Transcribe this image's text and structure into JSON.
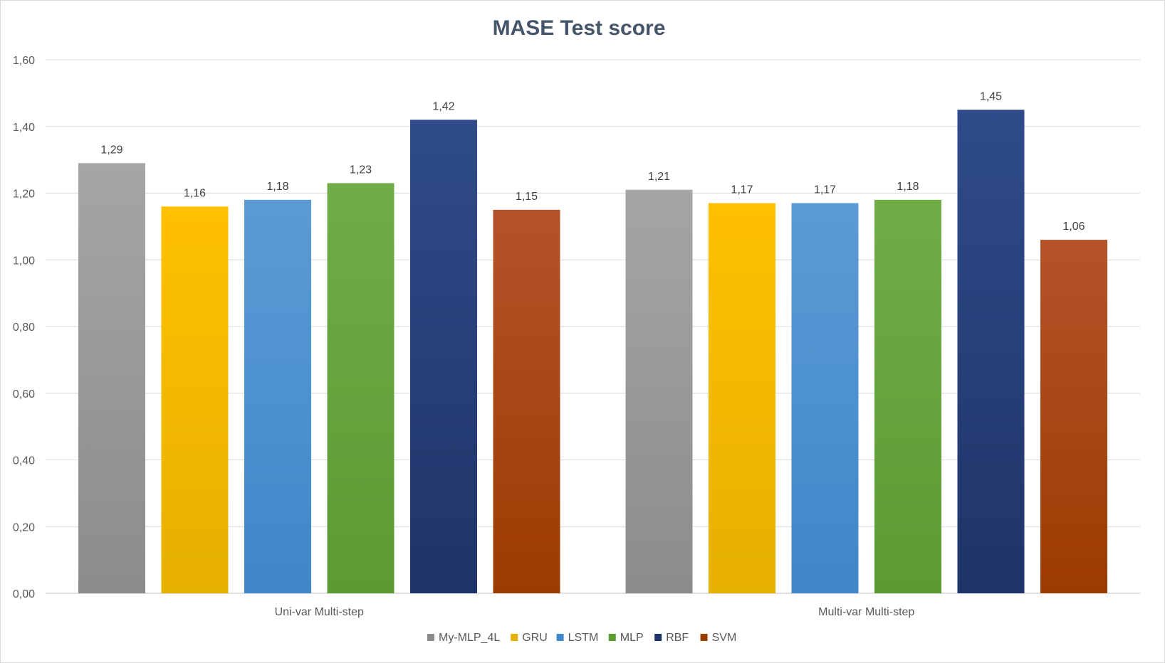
{
  "chart_data": {
    "type": "bar",
    "title": "MASE Test score",
    "categories": [
      "Uni-var Multi-step",
      "Multi-var Multi-step"
    ],
    "series": [
      {
        "name": "My-MLP_4L",
        "values": [
          1.29,
          1.21
        ],
        "labels": [
          "1,29",
          "1,21"
        ],
        "color": "#a5a5a5",
        "color_dark": "#8c8c8c"
      },
      {
        "name": "GRU",
        "values": [
          1.16,
          1.17
        ],
        "labels": [
          "1,16",
          "1,17"
        ],
        "color": "#ffc000",
        "color_dark": "#e6b000"
      },
      {
        "name": "LSTM",
        "values": [
          1.18,
          1.17
        ],
        "labels": [
          "1,18",
          "1,17"
        ],
        "color": "#5b9bd5",
        "color_dark": "#3f87c9"
      },
      {
        "name": "MLP",
        "values": [
          1.23,
          1.18
        ],
        "labels": [
          "1,23",
          "1,18"
        ],
        "color": "#70ad47",
        "color_dark": "#5c9a32"
      },
      {
        "name": "RBF",
        "values": [
          1.42,
          1.45
        ],
        "labels": [
          "1,42",
          "1,45"
        ],
        "color": "#2f4b8a",
        "color_dark": "#1f3468"
      },
      {
        "name": "SVM",
        "values": [
          1.15,
          1.06
        ],
        "labels": [
          "1,15",
          "1,06"
        ],
        "color": "#b5522b",
        "color_dark": "#9c3b00"
      }
    ],
    "ylim": [
      0,
      1.6
    ],
    "yticks": [
      0,
      0.2,
      0.4,
      0.6,
      0.8,
      1.0,
      1.2,
      1.4,
      1.6
    ],
    "ytick_labels": [
      "0,00",
      "0,20",
      "0,40",
      "0,60",
      "0,80",
      "1,00",
      "1,20",
      "1,40",
      "1,60"
    ],
    "grid": true,
    "legend_position": "bottom"
  }
}
